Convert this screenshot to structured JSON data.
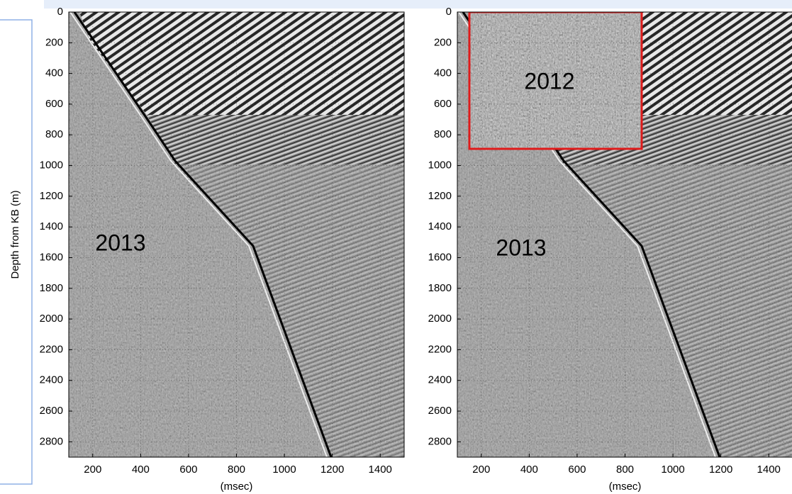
{
  "chart_data": [
    {
      "type": "image",
      "ylabel": "Depth from KB (m)",
      "xlabel": "(msec)",
      "xlim": [
        100,
        1500
      ],
      "ylim": [
        0,
        2900
      ],
      "xticks": [
        200,
        400,
        600,
        800,
        1000,
        1200,
        1400
      ],
      "yticks": [
        0,
        200,
        400,
        600,
        800,
        1000,
        1200,
        1400,
        1600,
        1800,
        2000,
        2200,
        2400,
        2600,
        2800
      ],
      "grid": true,
      "annotations": [
        "2013"
      ]
    },
    {
      "type": "image",
      "xlabel": "(msec)",
      "xlim": [
        100,
        1500
      ],
      "ylim": [
        0,
        2900
      ],
      "xticks": [
        200,
        400,
        600,
        800,
        1000,
        1200,
        1400
      ],
      "yticks": [
        0,
        200,
        400,
        600,
        800,
        1000,
        1200,
        1400,
        1600,
        1800,
        2000,
        2200,
        2400,
        2600,
        2800
      ],
      "grid": true,
      "annotations": [
        "2012",
        "2013"
      ]
    }
  ]
}
